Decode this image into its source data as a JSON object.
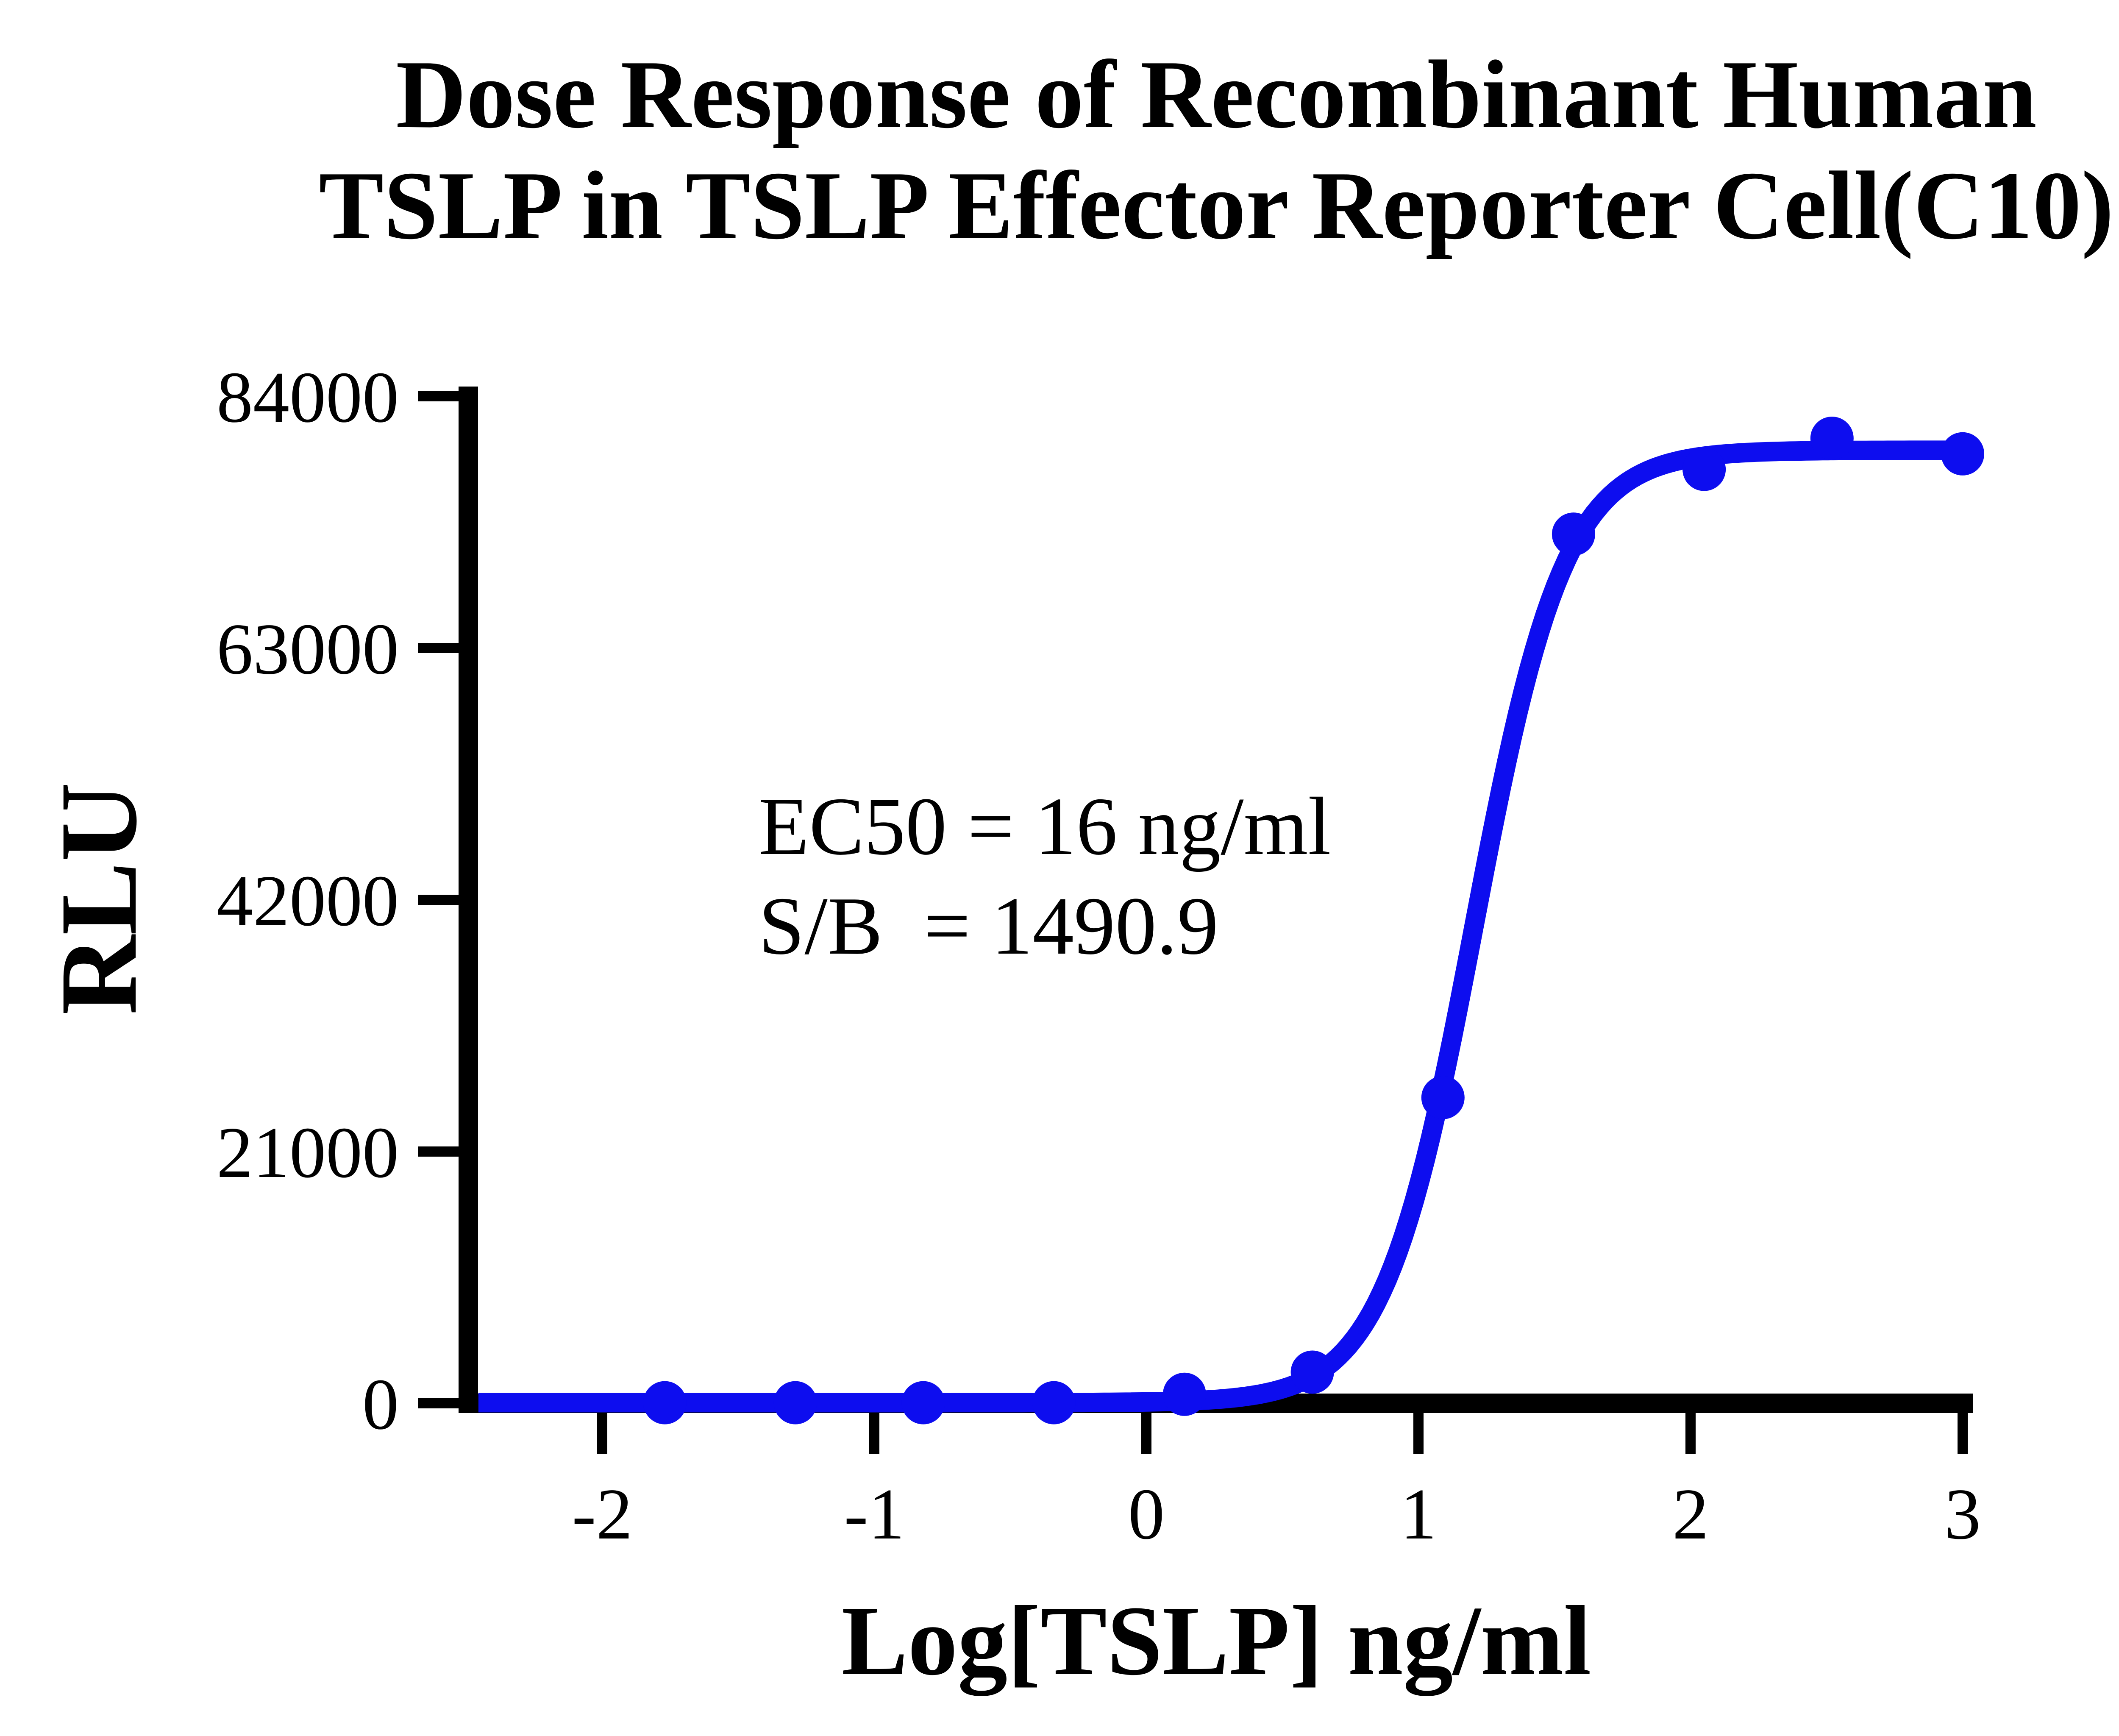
{
  "page": {
    "background_color": "#ffffff"
  },
  "chart_data": {
    "type": "scatter",
    "title_line1": "Dose Response of Recombinant Human",
    "title_line2": "TSLP in TSLP Effector Reporter Cell(C10)",
    "xlabel": "Log[TSLP] ng/ml",
    "ylabel": "RLU",
    "annotation_line1": "EC50 = 16 ng/ml",
    "annotation_line2": "S/B  = 1490.9",
    "ec50_ng_ml": 16,
    "s_over_b": 1490.9,
    "x_ticks": [
      -2,
      -1,
      0,
      1,
      2,
      3
    ],
    "y_ticks": [
      0,
      21000,
      42000,
      63000,
      84000
    ],
    "xlim": [
      -2.5,
      3.03
    ],
    "ylim": [
      0,
      84000
    ],
    "grid": false,
    "legend": "none",
    "curve_color": "#0D0DEF",
    "axis_color": "#000000",
    "points": [
      {
        "x": -1.77,
        "y": 50
      },
      {
        "x": -1.29,
        "y": 50
      },
      {
        "x": -0.82,
        "y": 50
      },
      {
        "x": -0.34,
        "y": 50
      },
      {
        "x": 0.14,
        "y": 750
      },
      {
        "x": 0.61,
        "y": 2600
      },
      {
        "x": 1.09,
        "y": 25500
      },
      {
        "x": 1.57,
        "y": 72500
      },
      {
        "x": 2.05,
        "y": 77900
      },
      {
        "x": 2.52,
        "y": 80500
      },
      {
        "x": 3.0,
        "y": 79200
      }
    ],
    "fit": {
      "model": "4PL",
      "bottom": 54,
      "top": 79500,
      "logEC50": 1.204,
      "hill": 2.6,
      "x_start": -2.455,
      "x_end": 3.0
    }
  }
}
